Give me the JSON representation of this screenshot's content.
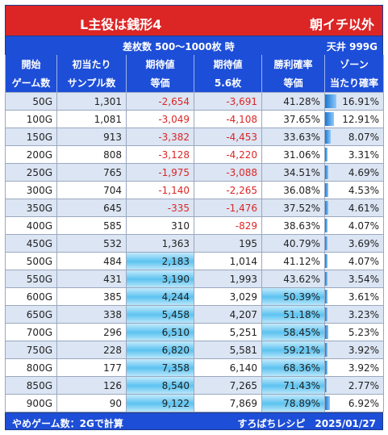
{
  "header": {
    "title": "L主役は銭形4",
    "right": "朝イチ以外"
  },
  "subheader": {
    "condition": "差枚数 500～1000枚 時",
    "ceiling": "天井 999G"
  },
  "columns": [
    {
      "l1": "開始",
      "l2": "ゲーム数"
    },
    {
      "l1": "初当たり",
      "l2": "サンプル数"
    },
    {
      "l1": "期待値",
      "l2": "等価"
    },
    {
      "l1": "期待値",
      "l2": "5.6枚"
    },
    {
      "l1": "勝利確率",
      "l2": "等価"
    },
    {
      "l1": "ゾーン",
      "l2": "当たり確率"
    }
  ],
  "rows": [
    {
      "g": "50G",
      "n": "1,301",
      "ev": "-2,654",
      "ev56": "-3,691",
      "win": "41.28%",
      "zone": "16.91%",
      "zv": 16.91
    },
    {
      "g": "100G",
      "n": "1,081",
      "ev": "-3,049",
      "ev56": "-4,108",
      "win": "37.65%",
      "zone": "12.91%",
      "zv": 12.91
    },
    {
      "g": "150G",
      "n": "913",
      "ev": "-3,382",
      "ev56": "-4,453",
      "win": "33.63%",
      "zone": "8.07%",
      "zv": 8.07
    },
    {
      "g": "200G",
      "n": "808",
      "ev": "-3,128",
      "ev56": "-4,220",
      "win": "31.06%",
      "zone": "3.31%",
      "zv": 3.31
    },
    {
      "g": "250G",
      "n": "765",
      "ev": "-1,975",
      "ev56": "-3,088",
      "win": "34.51%",
      "zone": "4.69%",
      "zv": 4.69
    },
    {
      "g": "300G",
      "n": "704",
      "ev": "-1,140",
      "ev56": "-2,265",
      "win": "36.08%",
      "zone": "4.53%",
      "zv": 4.53
    },
    {
      "g": "350G",
      "n": "645",
      "ev": "-335",
      "ev56": "-1,476",
      "win": "37.52%",
      "zone": "4.61%",
      "zv": 4.61
    },
    {
      "g": "400G",
      "n": "585",
      "ev": "310",
      "ev56": "-829",
      "win": "38.63%",
      "zone": "4.07%",
      "zv": 4.07
    },
    {
      "g": "450G",
      "n": "532",
      "ev": "1,363",
      "ev56": "195",
      "win": "40.79%",
      "zone": "3.69%",
      "zv": 3.69
    },
    {
      "g": "500G",
      "n": "484",
      "ev": "2,183",
      "ev56": "1,014",
      "win": "41.12%",
      "zone": "4.07%",
      "zv": 4.07
    },
    {
      "g": "550G",
      "n": "431",
      "ev": "3,190",
      "ev56": "1,993",
      "win": "43.62%",
      "zone": "3.54%",
      "zv": 3.54
    },
    {
      "g": "600G",
      "n": "385",
      "ev": "4,244",
      "ev56": "3,029",
      "win": "50.39%",
      "zone": "3.61%",
      "zv": 3.61
    },
    {
      "g": "650G",
      "n": "338",
      "ev": "5,458",
      "ev56": "4,207",
      "win": "51.18%",
      "zone": "3.23%",
      "zv": 3.23
    },
    {
      "g": "700G",
      "n": "296",
      "ev": "6,510",
      "ev56": "5,251",
      "win": "58.45%",
      "zone": "5.23%",
      "zv": 5.23
    },
    {
      "g": "750G",
      "n": "228",
      "ev": "6,820",
      "ev56": "5,581",
      "win": "59.21%",
      "zone": "3.92%",
      "zv": 3.92
    },
    {
      "g": "800G",
      "n": "177",
      "ev": "7,358",
      "ev56": "6,140",
      "win": "68.36%",
      "zone": "3.92%",
      "zv": 3.92
    },
    {
      "g": "850G",
      "n": "126",
      "ev": "8,540",
      "ev56": "7,265",
      "win": "71.43%",
      "zone": "2.77%",
      "zv": 2.77
    },
    {
      "g": "900G",
      "n": "90",
      "ev": "9,122",
      "ev56": "7,869",
      "win": "78.89%",
      "zone": "6.92%",
      "zv": 6.92
    }
  ],
  "footer": {
    "left": "やめゲーム数：2Gで計算",
    "right": "すろぱちレシピ　2025/01/27"
  },
  "colors": {
    "title_bg": "#dc2626",
    "header_bg": "#1d4ed8",
    "row_alt": "#dbe5f3",
    "negative": "#dc2626",
    "highlight": "#5cc3f0"
  }
}
